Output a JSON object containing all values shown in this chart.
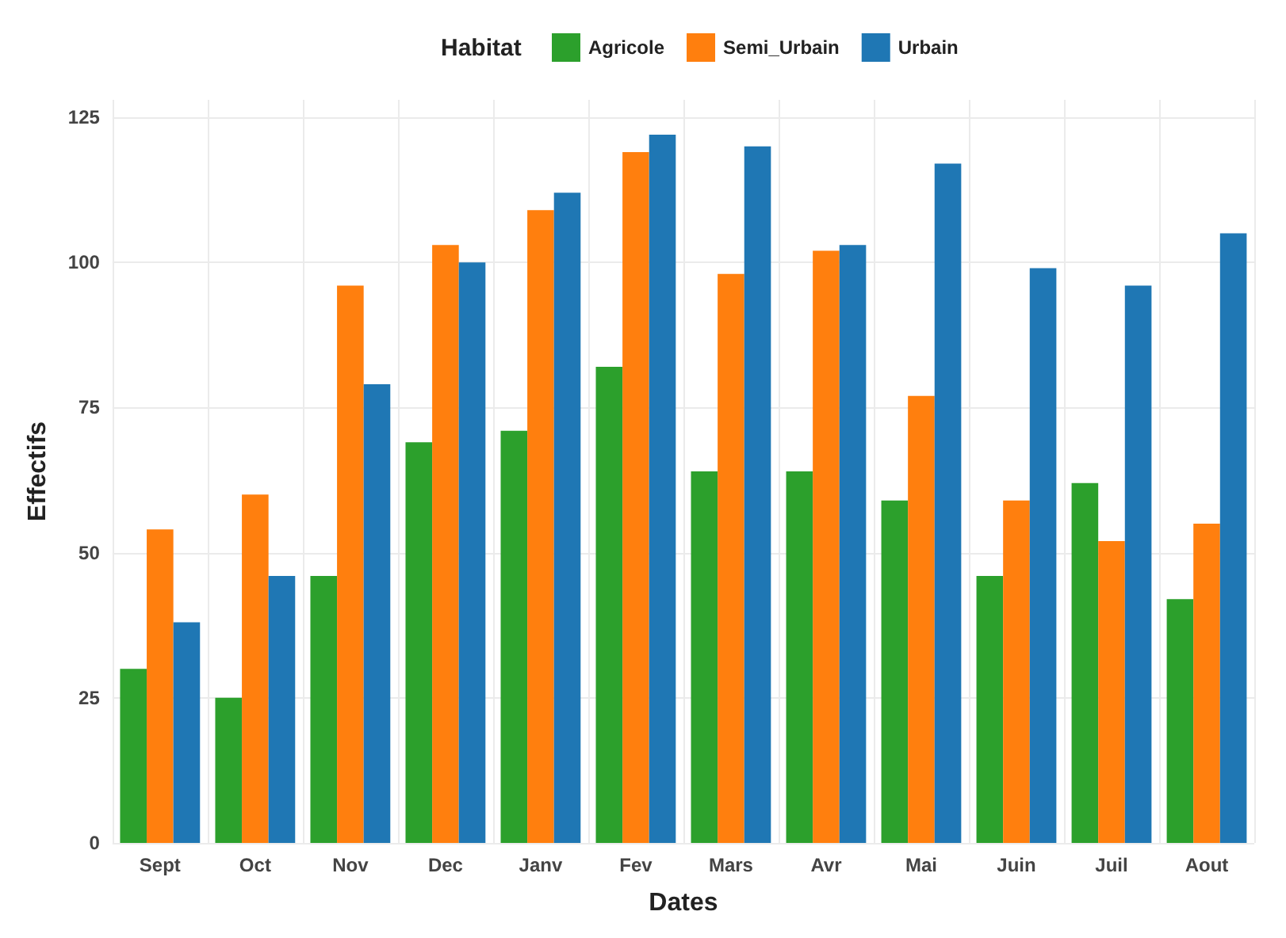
{
  "chart_data": {
    "type": "bar",
    "xlabel": "Dates",
    "ylabel": "Effectifs",
    "legend_title": "Habitat",
    "legend": "top",
    "categories": [
      "Sept",
      "Oct",
      "Nov",
      "Dec",
      "Janv",
      "Fev",
      "Mars",
      "Avr",
      "Mai",
      "Juin",
      "Juil",
      "Aout"
    ],
    "series": [
      {
        "name": "Agricole",
        "color": "#2ca02c",
        "values": [
          30,
          25,
          46,
          69,
          71,
          82,
          64,
          64,
          59,
          46,
          62,
          42
        ]
      },
      {
        "name": "Semi_Urbain",
        "color": "#ff7f0e",
        "values": [
          54,
          60,
          96,
          103,
          109,
          119,
          98,
          102,
          77,
          59,
          52,
          55
        ]
      },
      {
        "name": "Urbain",
        "color": "#1f77b4",
        "values": [
          38,
          46,
          79,
          100,
          112,
          122,
          120,
          103,
          117,
          99,
          96,
          105
        ]
      }
    ],
    "ylim": [
      0,
      128
    ],
    "yticks": [
      0,
      25,
      50,
      75,
      100,
      125
    ],
    "grid": true
  }
}
